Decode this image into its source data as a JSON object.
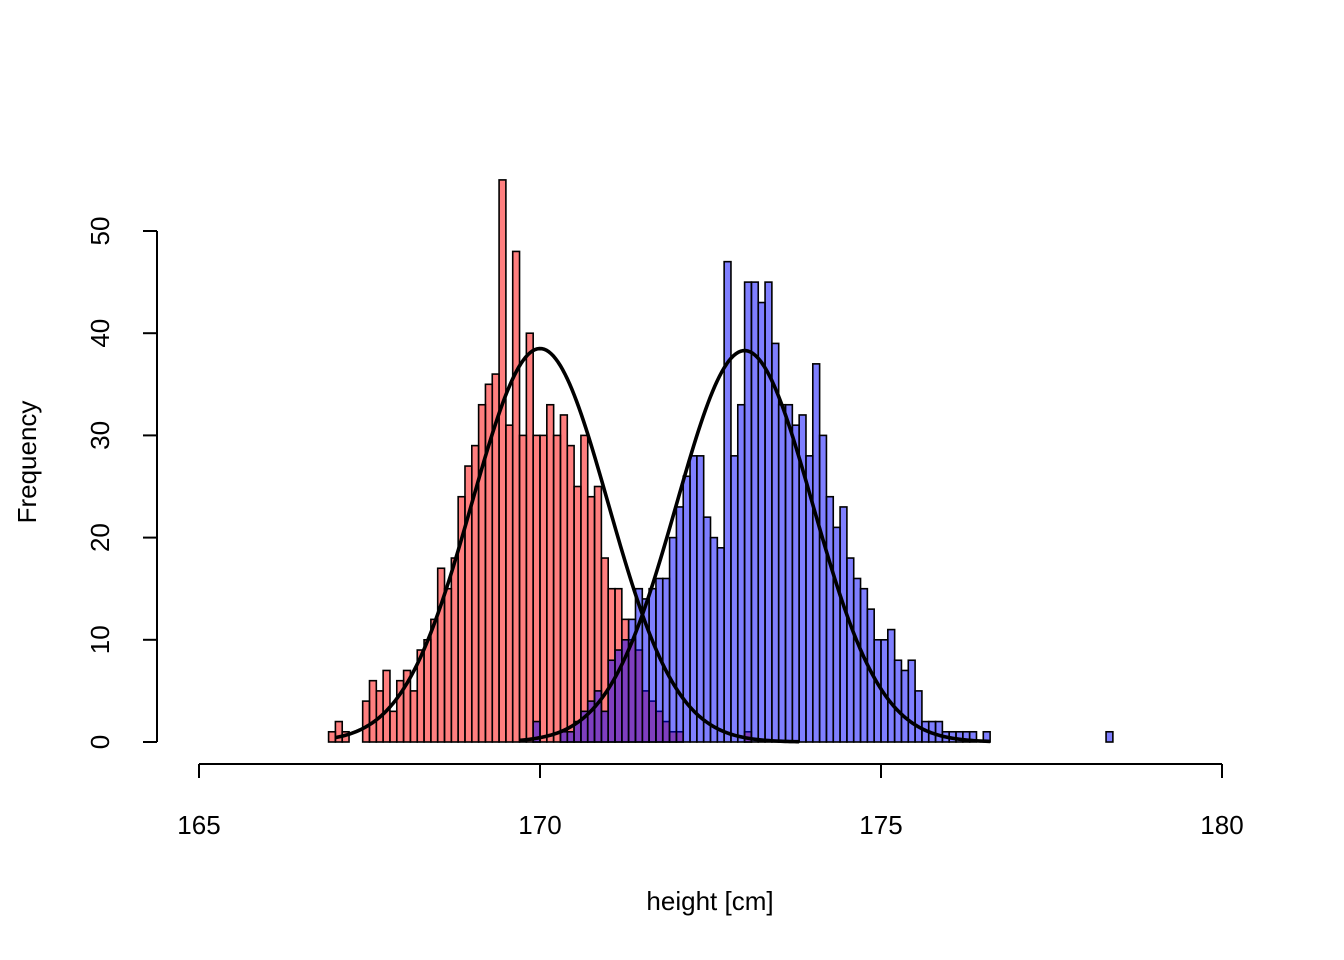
{
  "chart_data": {
    "type": "bar",
    "title": "",
    "xlabel": "height [cm]",
    "ylabel": "Frequency",
    "xlim": [
      165,
      180
    ],
    "ylim": [
      0,
      55
    ],
    "x_ticks": [
      165,
      170,
      175,
      180
    ],
    "y_ticks": [
      0,
      10,
      20,
      30,
      40,
      50
    ],
    "grid": false,
    "legend": "none",
    "bin_width": 0.1,
    "series": [
      {
        "color": "#f26d6d",
        "fill": "rgba(255,0,0,0.5)",
        "bin_start": 166.9,
        "values": [
          1,
          2,
          1,
          0,
          0,
          4,
          6,
          5,
          7,
          3,
          6,
          7,
          5,
          9,
          10,
          12,
          17,
          15,
          18,
          24,
          27,
          29,
          33,
          35,
          36,
          55,
          31,
          48,
          30,
          40,
          30,
          30,
          33,
          30,
          32,
          29,
          25,
          30,
          24,
          25,
          18,
          15,
          15,
          12,
          10,
          9,
          5,
          4,
          3,
          2,
          1,
          1,
          0,
          0,
          0,
          0,
          0,
          0,
          0,
          0,
          0,
          1
        ]
      },
      {
        "color": "#7b7bff",
        "fill": "rgba(0,0,255,0.5)",
        "bin_start": 169.7,
        "values": [
          0,
          0,
          2,
          0,
          0,
          0,
          1,
          1,
          2,
          3,
          4,
          5,
          3,
          8,
          9,
          10,
          12,
          15,
          14,
          15,
          16,
          16,
          20,
          23,
          26,
          28,
          28,
          22,
          20,
          19,
          47,
          28,
          33,
          45,
          45,
          43,
          45,
          39,
          33,
          33,
          31,
          32,
          28,
          37,
          30,
          24,
          21,
          23,
          18,
          16,
          15,
          13,
          10,
          10,
          11,
          8,
          7,
          8,
          5,
          2,
          2,
          2,
          1,
          1,
          1,
          1,
          1,
          0,
          1,
          0,
          0,
          0,
          0,
          0,
          0,
          0,
          0,
          0,
          0,
          0,
          0,
          0,
          0,
          0,
          0,
          0,
          1
        ]
      }
    ],
    "curves": [
      {
        "mean": 170.0,
        "sd": 1.0,
        "peak": 38.5,
        "x_range": [
          167.0,
          173.8
        ]
      },
      {
        "mean": 173.0,
        "sd": 1.0,
        "peak": 38.3,
        "x_range": [
          169.7,
          176.6
        ]
      }
    ]
  }
}
